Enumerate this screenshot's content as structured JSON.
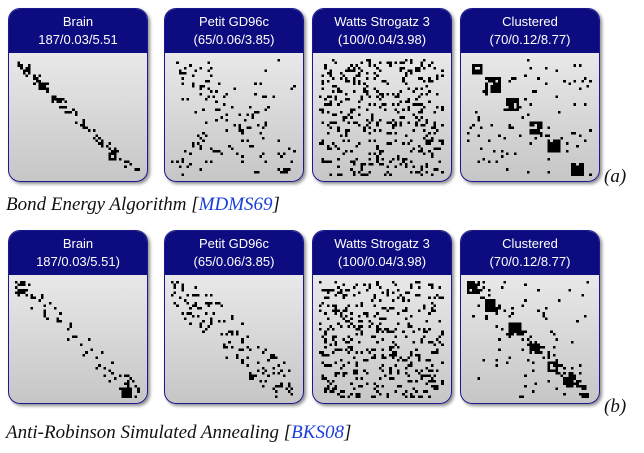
{
  "rows": [
    {
      "tag": "(a)",
      "caption": {
        "text": "Bond Energy Algorithm [",
        "cite": "MDMS69",
        "close": "]"
      },
      "panels": [
        {
          "title": "Brain",
          "stats": "187/0.03/5.51",
          "n": 187,
          "pattern": "band-sparse"
        },
        {
          "title": "Petit GD96c",
          "stats": "(65/0.06/3.85)",
          "n": 65,
          "pattern": "scattered-blocks"
        },
        {
          "title": "Watts Strogatz 3",
          "stats": "(100/0.04/3.98)",
          "n": 100,
          "pattern": "random"
        },
        {
          "title": "Clustered",
          "stats": "(70/0.12/8.77)",
          "n": 70,
          "pattern": "diagonal-blocks"
        }
      ]
    },
    {
      "tag": "(b)",
      "caption": {
        "text": "Anti-Robinson Simulated Annealing [",
        "cite": "BKS08",
        "close": "]"
      },
      "panels": [
        {
          "title": "Brain",
          "stats": "187/0.03/5.51)",
          "n": 187,
          "pattern": "band-sparse-b"
        },
        {
          "title": "Petit GD96c",
          "stats": "(65/0.06/3.85)",
          "n": 65,
          "pattern": "band-wide"
        },
        {
          "title": "Watts Strogatz 3",
          "stats": "(100/0.04/3.98)",
          "n": 100,
          "pattern": "random-band"
        },
        {
          "title": "Clustered",
          "stats": "(70/0.12/8.77)",
          "n": 70,
          "pattern": "diagonal-blocks-b"
        }
      ]
    }
  ],
  "colors": {
    "header": "#0c0c80",
    "border": "#1a1a8c",
    "cite": "#1a3fd8",
    "cell": "#000000"
  }
}
